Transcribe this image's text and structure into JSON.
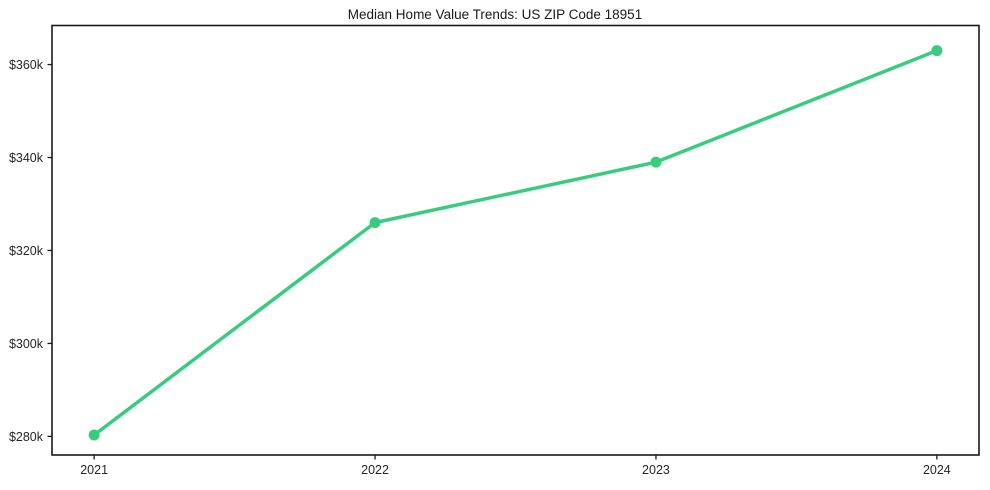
{
  "title": "Median Home Value Trends: US ZIP Code 18951",
  "chart_data": {
    "type": "line",
    "title": "Median Home Value Trends: US ZIP Code 18951",
    "x": [
      2021,
      2022,
      2023,
      2024
    ],
    "x_tick_labels": [
      "2021",
      "2022",
      "2023",
      "2024"
    ],
    "series": [
      {
        "name": "median-home-value",
        "values": [
          280300,
          326000,
          339000,
          363000
        ],
        "color": "#38cc7d"
      }
    ],
    "y_ticks": [
      280000,
      300000,
      320000,
      340000,
      360000
    ],
    "y_tick_labels": [
      "$280k",
      "$300k",
      "$320k",
      "$340k",
      "$360k"
    ],
    "ylim": [
      276000,
      368400
    ],
    "xlim": [
      2020.85,
      2024.15
    ],
    "xlabel": "",
    "ylabel": "",
    "grid": false,
    "legend": null,
    "marker": "circle",
    "line_width": 3.5,
    "marker_radius": 5.5,
    "axis_color": "#1a1a1a",
    "tick_label_color": "#262626",
    "background": "#ffffff"
  }
}
